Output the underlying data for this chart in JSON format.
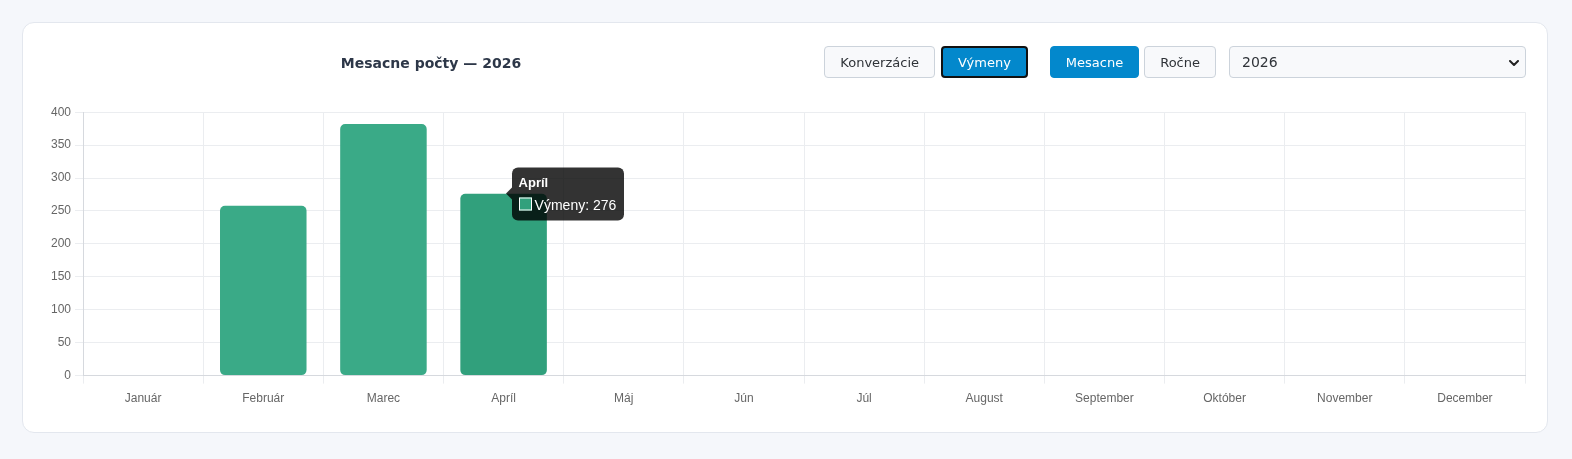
{
  "chart_data": {
    "type": "bar",
    "title": "Mesacne počty — 2026",
    "categories": [
      "Január",
      "Február",
      "Marec",
      "Apríl",
      "Máj",
      "Jún",
      "Júl",
      "August",
      "September",
      "Október",
      "November",
      "December"
    ],
    "values": [
      0,
      258,
      382,
      276,
      0,
      0,
      0,
      0,
      0,
      0,
      0,
      0
    ],
    "colors": [
      "#3aaa87",
      "#3aaa87",
      "#3aaa87",
      "#31a07c",
      "#3aaa87",
      "#3aaa87",
      "#3aaa87",
      "#3aaa87",
      "#3aaa87",
      "#3aaa87",
      "#3aaa87",
      "#3aaa87"
    ],
    "ylim": [
      0,
      400
    ],
    "yticks": [
      0,
      50,
      100,
      150,
      200,
      250,
      300,
      350,
      400
    ],
    "grid": true,
    "annotations": [
      "Konverzácie",
      "Výmeny",
      "Mesacne",
      "Ročne",
      "2026",
      {
        "text": "Apríl",
        "x": "Apríl",
        "y": 276
      },
      {
        "text": "Výmeny: 276",
        "x": "Apríl",
        "y": 276
      }
    ]
  }
}
